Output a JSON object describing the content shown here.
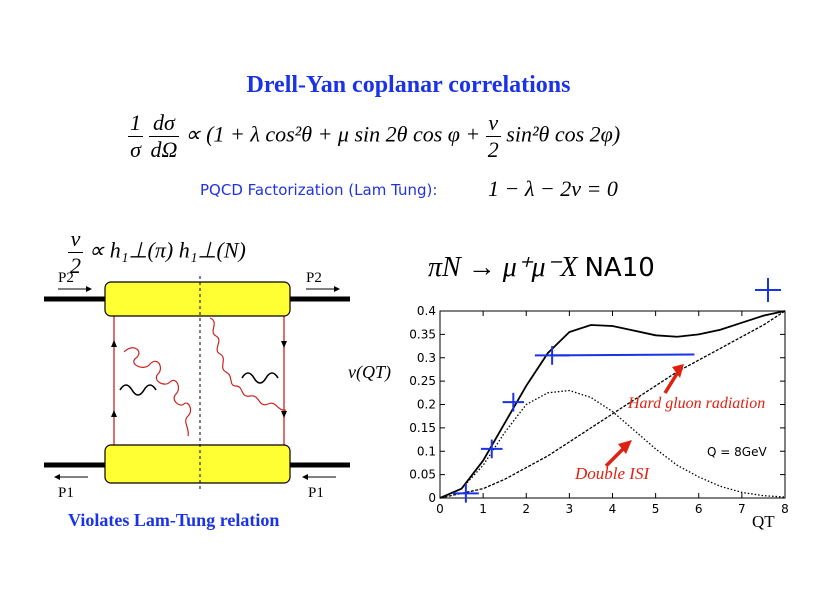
{
  "title": "Drell-Yan coplanar correlations",
  "equation": {
    "lhs_num": "1",
    "lhs_den": "σ",
    "dsig_num": "dσ",
    "dsig_den": "dΩ",
    "prop": "∝",
    "body": "(1 + λ cos²θ + μ sin 2θ cos φ +",
    "nu_num": "ν",
    "nu_den": "2",
    "tail": "sin²θ cos 2φ)"
  },
  "pqcd_label": "PQCD Factorization (Lam Tung):",
  "lam_tung": "1 − λ − 2ν = 0",
  "nu_half": {
    "num": "ν",
    "den": "2",
    "rhs": "∝   h₁⊥(π) h₁⊥(N)"
  },
  "diagram": {
    "p2_left": "P2",
    "p2_right": "P2",
    "p1_left": "P1",
    "p1_right": "P1"
  },
  "violates": "Violates Lam-Tung relation",
  "process": {
    "text": "πN → μ⁺μ⁻X",
    "experiment": "NA10"
  },
  "annotations": {
    "hard_gluon": "Hard gluon radiation",
    "double_isi": "Double ISI",
    "q_value": "Q = 8GeV"
  },
  "colors": {
    "title": "#1a33e6",
    "data": "#1a33e6",
    "annotation": "#dd2211",
    "blob": "#ffff33",
    "gluon": "#cc2222"
  },
  "chart_data": {
    "type": "line",
    "xlabel": "QT",
    "ylabel": "ν(QT)",
    "xlim": [
      0,
      8
    ],
    "ylim": [
      0,
      0.4
    ],
    "xticks": [
      "0",
      "1",
      "2",
      "3",
      "4",
      "5",
      "6",
      "7",
      "8"
    ],
    "yticks": [
      "0",
      "0.05",
      "0.1",
      "0.15",
      "0.2",
      "0.25",
      "0.3",
      "0.35",
      "0.4"
    ],
    "series": [
      {
        "name": "",
        "style": "solid",
        "x": [
          0,
          0.5,
          1,
          1.5,
          2,
          2.5,
          3,
          3.5,
          4,
          4.5,
          5,
          5.5,
          6,
          6.5,
          7,
          7.5,
          8
        ],
        "y": [
          0,
          0.02,
          0.08,
          0.16,
          0.24,
          0.31,
          0.355,
          0.37,
          0.368,
          0.358,
          0.348,
          0.345,
          0.35,
          0.36,
          0.375,
          0.39,
          0.4
        ]
      },
      {
        "name": "Double ISI",
        "style": "dotted",
        "x": [
          0,
          0.5,
          1,
          1.5,
          2,
          2.5,
          3,
          3.5,
          4,
          4.5,
          5,
          5.5,
          6,
          6.5,
          7,
          7.5,
          8
        ],
        "y": [
          0,
          0.02,
          0.07,
          0.14,
          0.2,
          0.225,
          0.23,
          0.215,
          0.185,
          0.145,
          0.105,
          0.07,
          0.045,
          0.025,
          0.012,
          0.005,
          0.002
        ]
      },
      {
        "name": "Hard gluon radiation",
        "style": "dashdot",
        "x": [
          0,
          0.5,
          1,
          1.5,
          2,
          2.5,
          3,
          3.5,
          4,
          4.5,
          5,
          5.5,
          6,
          6.5,
          7,
          7.5,
          8
        ],
        "y": [
          0,
          0.01,
          0.02,
          0.04,
          0.065,
          0.09,
          0.12,
          0.15,
          0.18,
          0.21,
          0.24,
          0.27,
          0.295,
          0.32,
          0.345,
          0.37,
          0.4
        ]
      }
    ],
    "data_points": [
      {
        "x": 0.6,
        "y": 0.01,
        "xerr": 0.3,
        "yerr": 0.02
      },
      {
        "x": 1.2,
        "y": 0.105,
        "xerr": 0.25,
        "yerr": 0.02
      },
      {
        "x": 1.7,
        "y": 0.205,
        "xerr": 0.25,
        "yerr": 0.02
      },
      {
        "x": 2.6,
        "y": 0.305,
        "xerr": 0.4,
        "yerr": 0.02
      }
    ]
  }
}
